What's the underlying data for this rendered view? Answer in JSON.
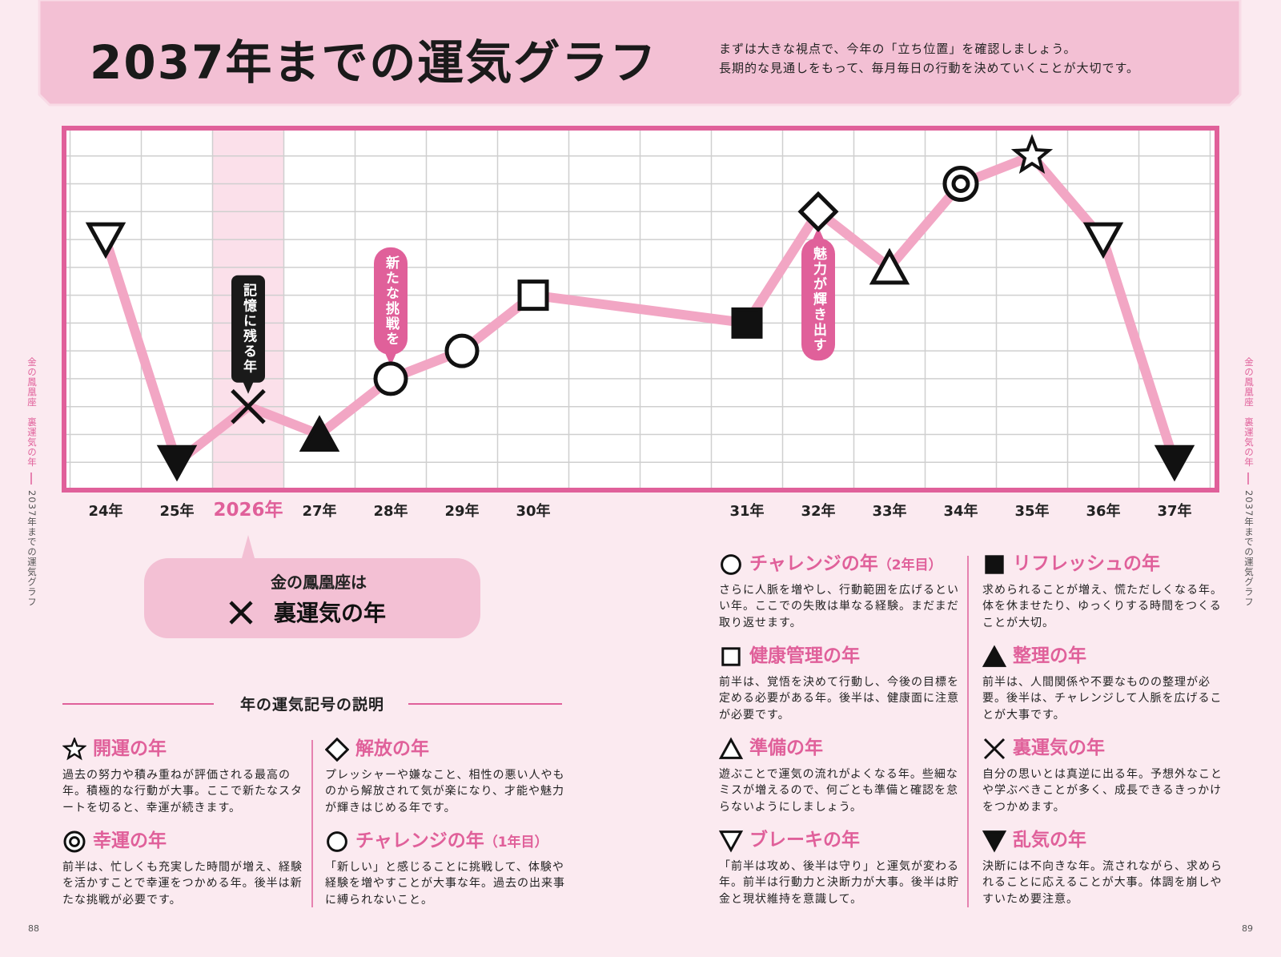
{
  "header": {
    "title": "2037年までの運気グラフ",
    "subtitle": [
      "まずは大きな視点で、今年の「立ち位置」を確認しましょう。",
      "長期的な見通しをもって、毎月毎日の行動を決めていくことが大切です。"
    ]
  },
  "chart_data": {
    "type": "line",
    "categories": [
      "24年",
      "25年",
      "2026年",
      "27年",
      "28年",
      "29年",
      "30年",
      null,
      null,
      "31年",
      "32年",
      "33年",
      "34年",
      "35年",
      "36年",
      "37年"
    ],
    "values": [
      9,
      1,
      3,
      2,
      4,
      5,
      7,
      null,
      null,
      6,
      10,
      8,
      11,
      12,
      9,
      1
    ],
    "markers": [
      "triangle-down-open",
      "triangle-down-filled",
      "cross",
      "triangle-up-filled",
      "circle-open",
      "circle-open",
      "square-open",
      null,
      null,
      "square-filled",
      "diamond-open",
      "triangle-up-open",
      "double-circle",
      "star-open",
      "triangle-down-open",
      "triangle-down-filled"
    ],
    "color": "#f2a6c4",
    "highlight_category": 2,
    "ylim": [
      0,
      13
    ],
    "yticks": [
      0,
      1,
      2,
      3,
      4,
      5,
      6,
      7,
      8,
      9,
      10,
      11,
      12,
      13
    ],
    "grid": true,
    "annotations": [
      {
        "index": 2,
        "text": "記憶に残る年",
        "color": "#1a1a1a",
        "side": "above"
      },
      {
        "index": 4,
        "text": "新たな挑戦を",
        "color": "#e0609a",
        "side": "above"
      },
      {
        "index": 10,
        "text": "魅力が輝き出す",
        "color": "#e0609a",
        "side": "below"
      }
    ]
  },
  "callout": {
    "line1": "金の鳳凰座は",
    "line2": "裏運気の年"
  },
  "legend": {
    "title": "年の運気記号の説明",
    "items": [
      {
        "marker": "star-open",
        "title": "開運の年",
        "text": "過去の努力や積み重ねが評価される最高の年。積極的な行動が大事。ここで新たなスタートを切ると、幸運が続きます。"
      },
      {
        "marker": "double-circle",
        "title": "幸運の年",
        "text": "前半は、忙しくも充実した時間が増え、経験を活かすことで幸運をつかめる年。後半は新たな挑戦が必要です。"
      },
      {
        "marker": "diamond-open",
        "title": "解放の年",
        "text": "プレッシャーや嫌なこと、相性の悪い人やものから解放されて気が楽になり、才能や魅力が輝きはじめる年です。"
      },
      {
        "marker": "circle-open",
        "title": "チャレンジの年",
        "sub": "（1年目）",
        "text": "「新しい」と感じることに挑戦して、体験や経験を増やすことが大事な年。過去の出来事に縛られないこと。"
      },
      {
        "marker": "circle-open",
        "title": "チャレンジの年",
        "sub": "（2年目）",
        "text": "さらに人脈を増やし、行動範囲を広げるといい年。ここでの失敗は単なる経験。まだまだ取り返せます。"
      },
      {
        "marker": "square-open",
        "title": "健康管理の年",
        "text": "前半は、覚悟を決めて行動し、今後の目標を定める必要がある年。後半は、健康面に注意が必要です。"
      },
      {
        "marker": "triangle-up-open",
        "title": "準備の年",
        "text": "遊ぶことで運気の流れがよくなる年。些細なミスが増えるので、何ごとも準備と確認を怠らないようにしましょう。"
      },
      {
        "marker": "triangle-down-open",
        "title": "ブレーキの年",
        "text": "「前半は攻め、後半は守り」と運気が変わる年。前半は行動力と決断力が大事。後半は貯金と現状維持を意識して。"
      },
      {
        "marker": "square-filled",
        "title": "リフレッシュの年",
        "text": "求められることが増え、慌ただしくなる年。体を休ませたり、ゆっくりする時間をつくることが大切。"
      },
      {
        "marker": "triangle-up-filled",
        "title": "整理の年",
        "text": "前半は、人間関係や不要なものの整理が必要。後半は、チャレンジして人脈を広げることが大事です。"
      },
      {
        "marker": "cross",
        "title": "裏運気の年",
        "text": "自分の思いとは真逆に出る年。予想外なことや学ぶべきことが多く、成長できるきっかけをつかめます。"
      },
      {
        "marker": "triangle-down-filled",
        "title": "乱気の年",
        "text": "決断には不向きな年。流されながら、求められることに応えることが大事。体調を崩しやすいため要注意。"
      }
    ]
  },
  "side": {
    "sign": "金の鳳凰座　裏運気の年",
    "chapter": "2037年までの運気グラフ"
  },
  "pages": {
    "left": "88",
    "right": "89"
  }
}
